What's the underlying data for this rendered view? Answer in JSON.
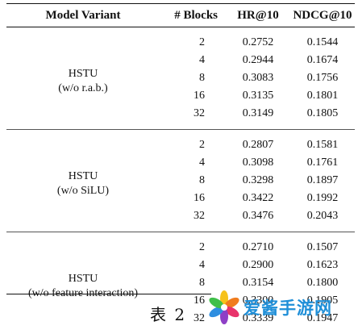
{
  "table": {
    "headers": [
      "Model Variant",
      "# Blocks",
      "HR@10",
      "NDCG@10"
    ],
    "groups": [
      {
        "variant_line1": "HSTU",
        "variant_line2": "(w/o r.a.b.)",
        "rows": [
          {
            "blocks": "2",
            "hr": "0.2752",
            "ndcg": "0.1544"
          },
          {
            "blocks": "4",
            "hr": "0.2944",
            "ndcg": "0.1674"
          },
          {
            "blocks": "8",
            "hr": "0.3083",
            "ndcg": "0.1756"
          },
          {
            "blocks": "16",
            "hr": "0.3135",
            "ndcg": "0.1801"
          },
          {
            "blocks": "32",
            "hr": "0.3149",
            "ndcg": "0.1805"
          }
        ]
      },
      {
        "variant_line1": "HSTU",
        "variant_line2": "(w/o SiLU)",
        "rows": [
          {
            "blocks": "2",
            "hr": "0.2807",
            "ndcg": "0.1581"
          },
          {
            "blocks": "4",
            "hr": "0.3098",
            "ndcg": "0.1761"
          },
          {
            "blocks": "8",
            "hr": "0.3298",
            "ndcg": "0.1897"
          },
          {
            "blocks": "16",
            "hr": "0.3422",
            "ndcg": "0.1992"
          },
          {
            "blocks": "32",
            "hr": "0.3476",
            "ndcg": "0.2043"
          }
        ]
      },
      {
        "variant_line1": "HSTU",
        "variant_line2": "(w/o feature interaction)",
        "rows": [
          {
            "blocks": "2",
            "hr": "0.2710",
            "ndcg": "0.1507"
          },
          {
            "blocks": "4",
            "hr": "0.2900",
            "ndcg": "0.1623"
          },
          {
            "blocks": "8",
            "hr": "0.3154",
            "ndcg": "0.1800"
          },
          {
            "blocks": "16",
            "hr": "0.3300",
            "ndcg": "0.1905"
          },
          {
            "blocks": "32",
            "hr": "0.3339",
            "ndcg": "0.1947"
          }
        ]
      }
    ]
  },
  "caption": "表 2",
  "watermark": {
    "text": "爱酱手游网",
    "icon": "flower-logo-icon",
    "text_color": "#1f8fd8"
  }
}
